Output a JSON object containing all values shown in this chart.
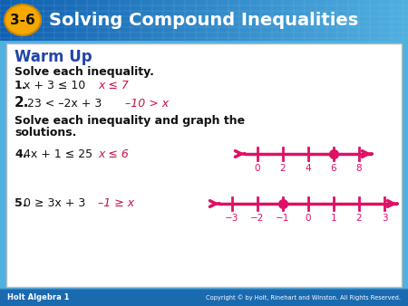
{
  "title_box_color": "#f5a800",
  "title_text": "3-6",
  "header_text": "Solving Compound Inequalities",
  "header_bg_left": "#1060b0",
  "header_bg_right": "#50b0e0",
  "header_text_color": "#ffffff",
  "warm_up_color": "#2244aa",
  "warm_up_text": "Warm Up",
  "black_text": "#111111",
  "red_answer": "#cc1144",
  "body_bg": "#ffffff",
  "border_color": "#bbbbbb",
  "footer_bg": "#1a6ab0",
  "footer_left": "Holt Algebra 1",
  "footer_right": "Copyright © by Holt, Rinehart and Winston. All Rights Reserved.",
  "number_line_color": "#dd1166",
  "grid_color": "#aaccee",
  "header_grid_color": "#5599cc"
}
